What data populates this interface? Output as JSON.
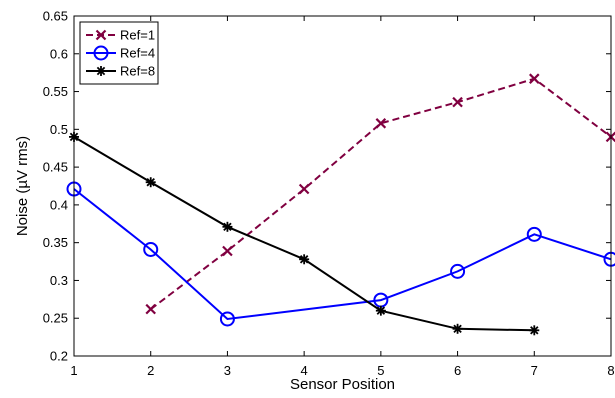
{
  "chart_data": {
    "type": "line",
    "title": "",
    "xlabel": "Sensor Position",
    "ylabel": "Noise (µV rms)",
    "xlim": [
      1,
      8
    ],
    "ylim": [
      0.2,
      0.65
    ],
    "xticks": [
      1,
      2,
      3,
      4,
      5,
      6,
      7,
      8
    ],
    "yticks": [
      0.2,
      0.25,
      0.3,
      0.35,
      0.4,
      0.45,
      0.5,
      0.55,
      0.6,
      0.65
    ],
    "grid": false,
    "legend_position": "top-left",
    "series": [
      {
        "name": "Ref=1",
        "color": "#800040",
        "line_style": "dashed",
        "marker": "x",
        "x": [
          2,
          3,
          4,
          5,
          6,
          7,
          8
        ],
        "y": [
          0.262,
          0.339,
          0.421,
          0.508,
          0.536,
          0.567,
          0.49
        ]
      },
      {
        "name": "Ref=4",
        "color": "#0000ff",
        "line_style": "solid",
        "marker": "circle",
        "x": [
          1,
          2,
          3,
          5,
          6,
          7,
          8
        ],
        "y": [
          0.421,
          0.341,
          0.249,
          0.274,
          0.312,
          0.361,
          0.328
        ]
      },
      {
        "name": "Ref=8",
        "color": "#000000",
        "line_style": "solid",
        "marker": "asterisk",
        "x": [
          1,
          2,
          3,
          4,
          5,
          6,
          7
        ],
        "y": [
          0.49,
          0.43,
          0.371,
          0.328,
          0.26,
          0.236,
          0.234
        ]
      }
    ]
  }
}
